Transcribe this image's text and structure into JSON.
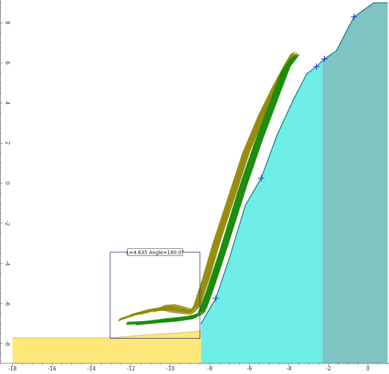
{
  "chart_data": {
    "type": "scatter",
    "title": "",
    "xlabel": "",
    "ylabel": "",
    "xlim": [
      -18.2,
      1.0
    ],
    "ylim": [
      -9.0,
      9.0
    ],
    "x_ticks": [
      -18,
      -16,
      -14,
      -12,
      -10,
      -8,
      -6,
      -4,
      -2,
      0
    ],
    "y_ticks": [
      -8,
      -6,
      -4,
      -2,
      0,
      2,
      4,
      6,
      8
    ],
    "tick_labels_x": [
      "-18",
      "-16",
      "-14",
      "-12",
      "-10",
      "-8",
      "-6",
      "-4",
      "-2",
      "0"
    ],
    "tick_labels_y": [
      "-8",
      "-6",
      "-4",
      "-2",
      "0",
      "2",
      "4",
      "6",
      "8"
    ],
    "grid": false,
    "legend": "none",
    "colors": {
      "yellow_fill": "#ffe87a",
      "yellow_edge": "#d8bf45",
      "cyan_fill": "#6eeee6",
      "teal_fill": "#7ec5c3",
      "slope_line": "#16707a",
      "green_paths": "#1a8c0a",
      "olive_paths": "#948a06",
      "marker": "#2233cc",
      "annotation_box": "#2a2a80"
    },
    "yellow_region": {
      "x_start": -18.0,
      "x_end": -8.45,
      "bottom": -9.0,
      "top": [
        [
          -18.0,
          -7.73
        ],
        [
          -13.0,
          -7.73
        ],
        [
          -11.5,
          -7.6
        ],
        [
          -9.0,
          -7.44
        ],
        [
          -8.45,
          -7.38
        ]
      ]
    },
    "cyan_region": {
      "x_start": -8.45,
      "x_end": -2.3,
      "bottom": -9.0
    },
    "teal_region": {
      "x_start": -2.3,
      "x_end": 1.0,
      "bottom": -9.0
    },
    "slope_profile": [
      [
        -8.45,
        -7.02
      ],
      [
        -7.7,
        -5.75
      ],
      [
        -7.0,
        -3.7
      ],
      [
        -6.2,
        -1.1
      ],
      [
        -5.4,
        0.25
      ],
      [
        -4.6,
        2.4
      ],
      [
        -3.8,
        4.1
      ],
      [
        -3.1,
        5.45
      ],
      [
        -2.6,
        5.82
      ],
      [
        -2.2,
        6.2
      ],
      [
        -1.6,
        6.6
      ],
      [
        -0.7,
        8.3
      ],
      [
        0.3,
        9.0
      ],
      [
        1.0,
        9.0
      ]
    ],
    "markers": [
      [
        -7.7,
        -5.75
      ],
      [
        -5.4,
        0.25
      ],
      [
        -2.6,
        5.82
      ],
      [
        -2.2,
        6.2
      ],
      [
        -0.7,
        8.3
      ]
    ],
    "annotation": {
      "label": "L=4.635  Angle=180.0°",
      "box_x": [
        -13.05,
        -8.5
      ],
      "box_y": [
        -7.75,
        -3.45
      ]
    },
    "trajectories": {
      "green": [
        [
          [
            -11.7,
            -7.02
          ],
          [
            -11.0,
            -6.95
          ],
          [
            -10.2,
            -6.88
          ],
          [
            -9.5,
            -6.82
          ],
          [
            -8.8,
            -6.72
          ],
          [
            -8.35,
            -6.5
          ],
          [
            -7.9,
            -5.3
          ],
          [
            -7.2,
            -3.2
          ],
          [
            -6.3,
            -0.3
          ],
          [
            -5.5,
            2.0
          ],
          [
            -4.7,
            4.1
          ],
          [
            -4.1,
            5.7
          ],
          [
            -3.65,
            6.32
          ]
        ],
        [
          [
            -11.0,
            -6.92
          ],
          [
            -10.3,
            -6.84
          ],
          [
            -9.6,
            -6.79
          ],
          [
            -8.9,
            -6.7
          ],
          [
            -8.45,
            -6.45
          ],
          [
            -8.0,
            -5.2
          ],
          [
            -7.3,
            -3.1
          ],
          [
            -6.4,
            -0.2
          ],
          [
            -5.6,
            2.1
          ],
          [
            -4.8,
            4.2
          ],
          [
            -4.2,
            5.75
          ],
          [
            -3.75,
            6.32
          ]
        ],
        [
          [
            -12.2,
            -7.0
          ],
          [
            -11.4,
            -6.96
          ],
          [
            -10.6,
            -6.9
          ],
          [
            -9.8,
            -6.84
          ],
          [
            -9.1,
            -6.75
          ],
          [
            -8.55,
            -6.5
          ],
          [
            -8.1,
            -5.35
          ],
          [
            -7.4,
            -3.25
          ],
          [
            -6.5,
            -0.35
          ],
          [
            -5.7,
            1.95
          ],
          [
            -4.9,
            4.05
          ],
          [
            -4.3,
            5.6
          ],
          [
            -3.85,
            6.25
          ]
        ],
        [
          [
            -10.5,
            -6.86
          ],
          [
            -9.8,
            -6.78
          ],
          [
            -9.2,
            -6.72
          ],
          [
            -8.7,
            -6.6
          ],
          [
            -8.25,
            -6.3
          ],
          [
            -7.8,
            -5.05
          ],
          [
            -7.1,
            -2.95
          ],
          [
            -6.2,
            -0.15
          ],
          [
            -5.4,
            2.15
          ],
          [
            -4.6,
            4.25
          ],
          [
            -4.0,
            5.8
          ],
          [
            -3.55,
            6.36
          ]
        ]
      ],
      "olive": [
        [
          [
            -11.5,
            -6.5
          ],
          [
            -10.9,
            -6.35
          ],
          [
            -10.3,
            -6.3
          ],
          [
            -9.8,
            -6.4
          ],
          [
            -9.3,
            -6.45
          ],
          [
            -8.9,
            -6.5
          ],
          [
            -8.6,
            -6.2
          ],
          [
            -8.2,
            -5.0
          ],
          [
            -7.6,
            -3.0
          ],
          [
            -6.9,
            -0.9
          ],
          [
            -6.1,
            1.5
          ],
          [
            -5.3,
            3.4
          ],
          [
            -4.6,
            4.8
          ],
          [
            -4.0,
            5.9
          ],
          [
            -3.7,
            6.45
          ]
        ],
        [
          [
            -12.0,
            -6.6
          ],
          [
            -11.3,
            -6.42
          ],
          [
            -10.6,
            -6.28
          ],
          [
            -10.0,
            -6.22
          ],
          [
            -9.4,
            -6.3
          ],
          [
            -8.95,
            -6.42
          ],
          [
            -8.7,
            -6.05
          ],
          [
            -8.3,
            -4.85
          ],
          [
            -7.7,
            -2.85
          ],
          [
            -7.0,
            -0.75
          ],
          [
            -6.2,
            1.65
          ],
          [
            -5.4,
            3.5
          ],
          [
            -4.7,
            4.9
          ],
          [
            -4.1,
            6.0
          ],
          [
            -3.8,
            6.5
          ]
        ],
        [
          [
            -10.8,
            -6.38
          ],
          [
            -10.3,
            -6.15
          ],
          [
            -9.8,
            -6.12
          ],
          [
            -9.35,
            -6.25
          ],
          [
            -8.95,
            -6.38
          ],
          [
            -8.6,
            -6.1
          ],
          [
            -8.15,
            -4.9
          ],
          [
            -7.55,
            -2.9
          ],
          [
            -6.85,
            -0.8
          ],
          [
            -6.05,
            1.6
          ],
          [
            -5.25,
            3.45
          ],
          [
            -4.55,
            4.85
          ],
          [
            -3.95,
            5.95
          ],
          [
            -3.65,
            6.4
          ]
        ],
        [
          [
            -12.6,
            -6.82
          ],
          [
            -11.8,
            -6.55
          ],
          [
            -11.1,
            -6.36
          ],
          [
            -10.4,
            -6.25
          ],
          [
            -9.7,
            -6.3
          ],
          [
            -9.1,
            -6.42
          ],
          [
            -8.75,
            -6.15
          ],
          [
            -8.35,
            -4.95
          ],
          [
            -7.75,
            -2.95
          ],
          [
            -7.05,
            -0.85
          ],
          [
            -6.25,
            1.55
          ],
          [
            -5.45,
            3.42
          ],
          [
            -4.75,
            4.82
          ],
          [
            -4.15,
            5.92
          ],
          [
            -3.85,
            6.42
          ]
        ]
      ]
    }
  }
}
